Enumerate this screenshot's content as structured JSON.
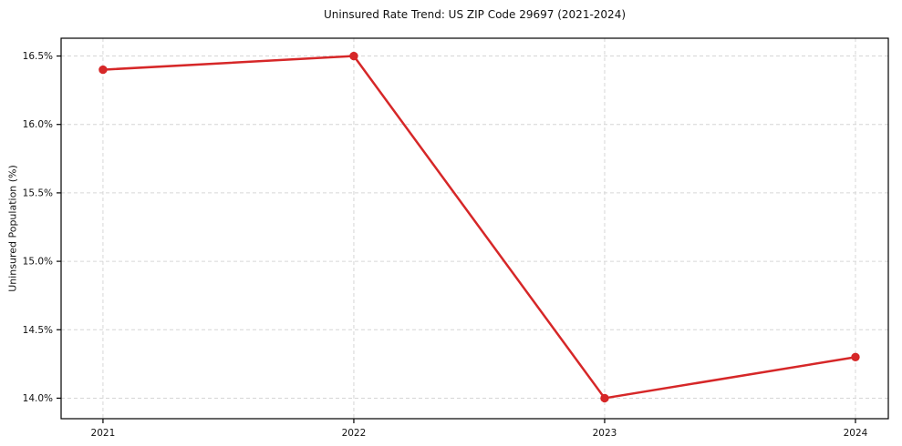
{
  "chart_data": {
    "type": "line",
    "title": "Uninsured Rate Trend: US ZIP Code 29697 (2021-2024)",
    "xlabel": "",
    "ylabel": "Uninsured Population (%)",
    "x": [
      2021,
      2022,
      2023,
      2024
    ],
    "x_tick_labels": [
      "2021",
      "2022",
      "2023",
      "2024"
    ],
    "series": [
      {
        "name": "Uninsured rate",
        "values": [
          16.4,
          16.5,
          14.0,
          14.3
        ],
        "color": "#d62728"
      }
    ],
    "y_ticks": [
      14.0,
      14.5,
      15.0,
      15.5,
      16.0,
      16.5
    ],
    "y_tick_labels": [
      "14.0%",
      "14.5%",
      "15.0%",
      "15.5%",
      "16.0%",
      "16.5%"
    ],
    "xlim": [
      2020.833,
      2024.131
    ],
    "ylim": [
      13.85,
      16.63
    ],
    "grid": true,
    "legend": false,
    "grid_color": "#d6d6d6",
    "spine_color": "#000000",
    "tick_color": "#000000",
    "text_color": "#111111",
    "background": "#ffffff"
  }
}
